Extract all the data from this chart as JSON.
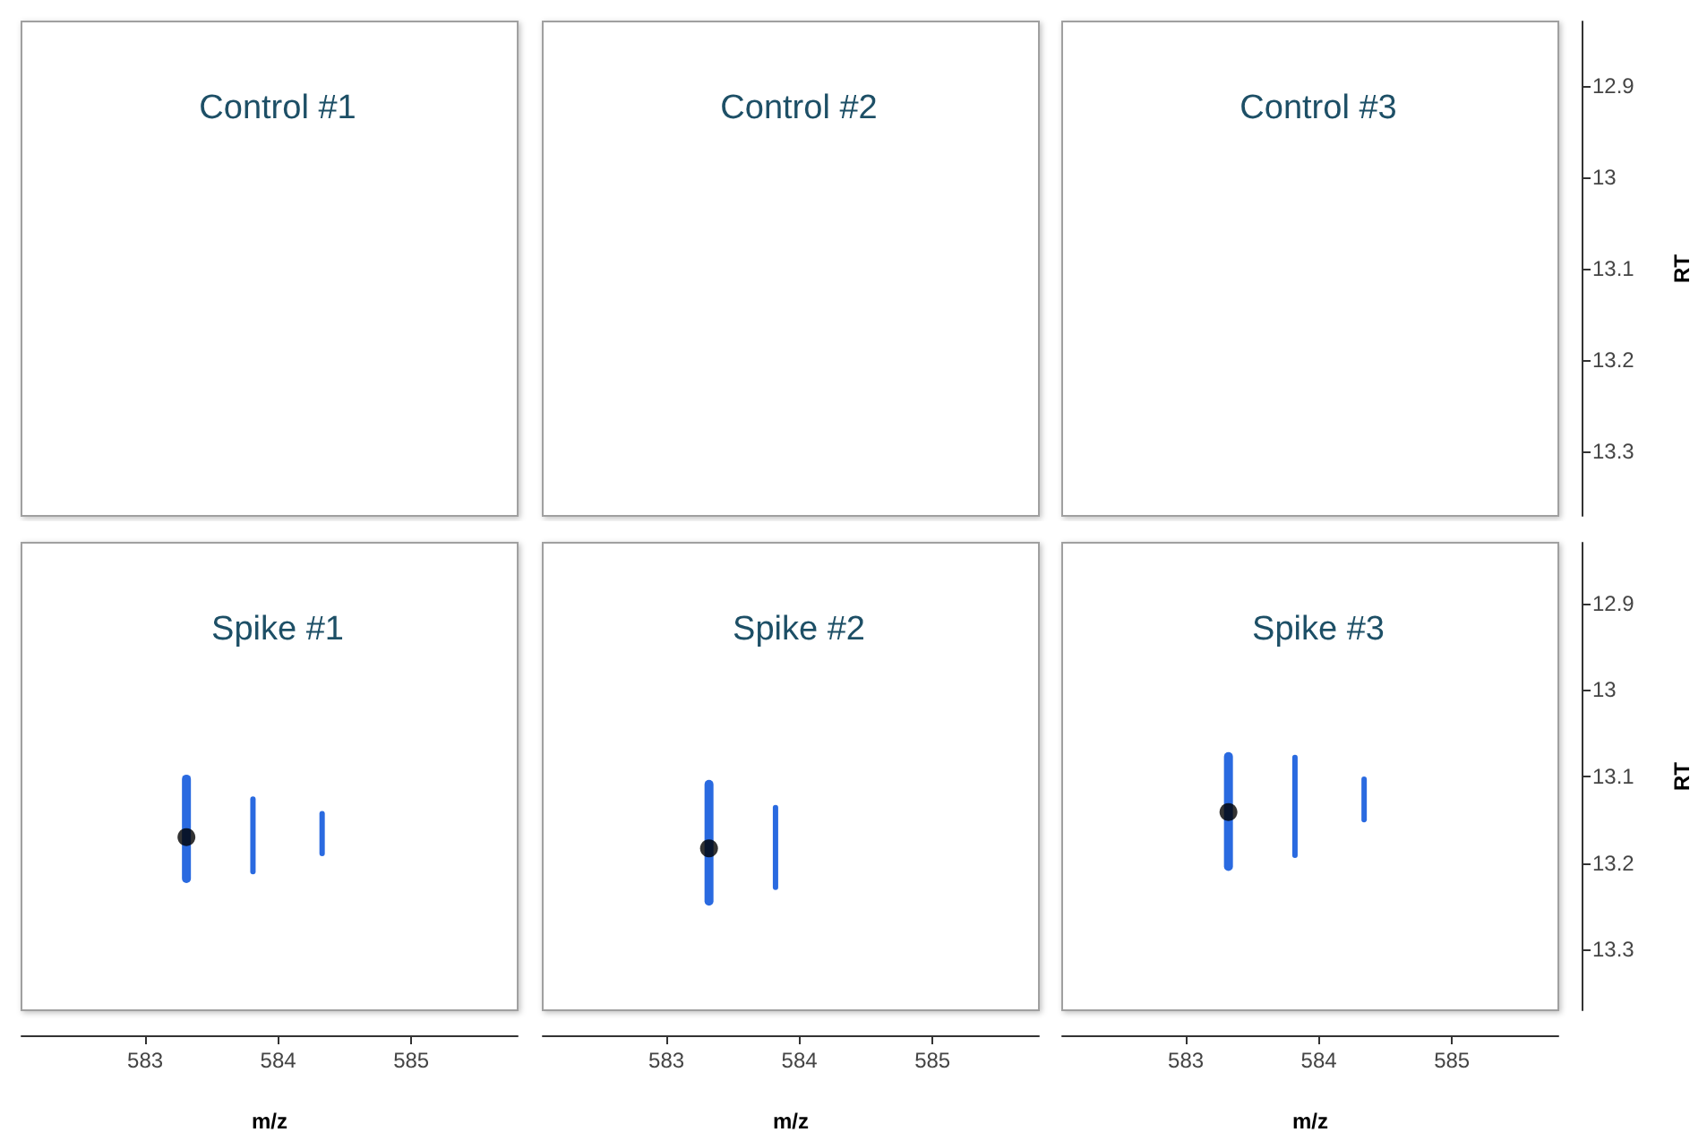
{
  "chart_data": [
    {
      "type": "scatter",
      "title": "Control #1",
      "xlim": [
        582.07,
        585.8
      ],
      "ylim": [
        13.37,
        12.83
      ],
      "xticks": [
        583,
        584,
        585
      ],
      "yticks": [
        12.9,
        13,
        13.1,
        13.2,
        13.3
      ],
      "tick_labels": false
    },
    {
      "type": "scatter",
      "title": "Control #2",
      "xlim": [
        582.07,
        585.8
      ],
      "ylim": [
        13.37,
        12.83
      ],
      "xticks": [
        583,
        584,
        585
      ],
      "yticks": [
        12.9,
        13,
        13.1,
        13.2,
        13.3
      ],
      "tick_labels": false
    },
    {
      "type": "scatter",
      "title": "Control #3",
      "ylabel": "RT",
      "xlim": [
        582.07,
        585.8
      ],
      "ylim": [
        13.37,
        12.83
      ],
      "xticks": [
        583,
        584,
        585
      ],
      "yticks": [
        12.9,
        13,
        13.1,
        13.2,
        13.3
      ],
      "tick_labels": "y"
    },
    {
      "type": "scatter",
      "title": "Spike #1",
      "xlabel": "m/z",
      "xlim": [
        582.07,
        585.8
      ],
      "ylim": [
        13.37,
        12.83
      ],
      "xticks": [
        583,
        584,
        585
      ],
      "yticks": [
        12.9,
        13,
        13.1,
        13.2,
        13.3
      ],
      "tick_labels": "x",
      "series": [
        {
          "type": "line",
          "color": "#2a6ae0",
          "x": [
            583.31,
            583.31
          ],
          "values": [
            13.103,
            13.218
          ]
        },
        {
          "type": "line",
          "color": "#2a6ae0",
          "x": [
            583.81,
            583.81
          ],
          "values": [
            13.126,
            13.21
          ]
        },
        {
          "type": "line",
          "color": "#2a6ae0",
          "x": [
            584.33,
            584.33
          ],
          "values": [
            13.143,
            13.189
          ]
        },
        {
          "type": "scatter",
          "color": "#000000",
          "marker": "circle",
          "x": [
            583.31
          ],
          "values": [
            13.17
          ]
        }
      ]
    },
    {
      "type": "scatter",
      "title": "Spike #2",
      "xlabel": "m/z",
      "xlim": [
        582.07,
        585.8
      ],
      "ylim": [
        13.37,
        12.83
      ],
      "xticks": [
        583,
        584,
        585
      ],
      "yticks": [
        12.9,
        13,
        13.1,
        13.2,
        13.3
      ],
      "tick_labels": "x",
      "series": [
        {
          "type": "line",
          "color": "#2a6ae0",
          "x": [
            583.32,
            583.32
          ],
          "values": [
            13.109,
            13.244
          ]
        },
        {
          "type": "line",
          "color": "#2a6ae0",
          "x": [
            583.82,
            583.82
          ],
          "values": [
            13.136,
            13.228
          ]
        },
        {
          "type": "scatter",
          "color": "#000000",
          "marker": "circle",
          "x": [
            583.32
          ],
          "values": [
            13.183
          ]
        }
      ]
    },
    {
      "type": "scatter",
      "title": "Spike #3",
      "xlabel": "m/z",
      "ylabel": "RT",
      "xlim": [
        582.07,
        585.8
      ],
      "ylim": [
        13.37,
        12.83
      ],
      "xticks": [
        583,
        584,
        585
      ],
      "yticks": [
        12.9,
        13,
        13.1,
        13.2,
        13.3
      ],
      "series": [
        {
          "type": "line",
          "color": "#2a6ae0",
          "x": [
            583.32,
            583.32
          ],
          "values": [
            13.077,
            13.204
          ]
        },
        {
          "type": "line",
          "color": "#2a6ae0",
          "x": [
            583.82,
            583.82
          ],
          "values": [
            13.078,
            13.191
          ]
        },
        {
          "type": "line",
          "color": "#2a6ae0",
          "x": [
            584.34,
            584.34
          ],
          "values": [
            13.103,
            13.15
          ]
        },
        {
          "type": "scatter",
          "color": "#000000",
          "marker": "circle",
          "x": [
            583.32
          ],
          "values": [
            13.141
          ]
        }
      ]
    }
  ]
}
